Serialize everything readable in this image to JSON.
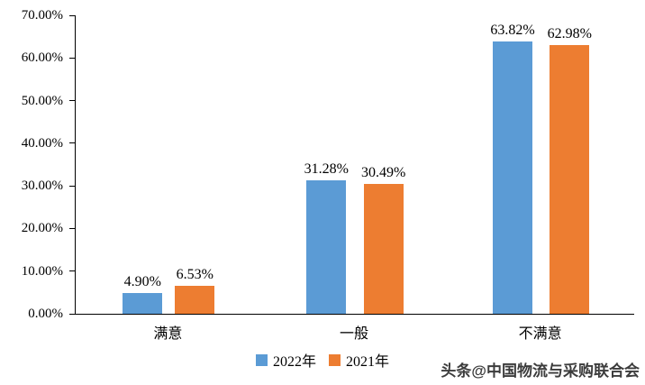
{
  "chart_data": {
    "type": "bar",
    "title": "",
    "categories": [
      "满意",
      "一般",
      "不满意"
    ],
    "series": [
      {
        "name": "2022年",
        "color": "#5B9BD5",
        "values": [
          4.9,
          31.28,
          63.82
        ]
      },
      {
        "name": "2021年",
        "color": "#ED7D31",
        "values": [
          6.53,
          30.49,
          62.98
        ]
      }
    ],
    "value_labels": [
      [
        "4.90%",
        "6.53%"
      ],
      [
        "31.28%",
        "30.49%"
      ],
      [
        "63.82%",
        "62.98%"
      ]
    ],
    "xlabel": "",
    "ylabel": "",
    "ylim": [
      0,
      70
    ],
    "y_ticks": [
      "0.00%",
      "10.00%",
      "20.00%",
      "30.00%",
      "40.00%",
      "50.00%",
      "60.00%",
      "70.00%"
    ],
    "grid": false,
    "legend_position": "bottom"
  },
  "watermark": "头条@中国物流与采购联合会"
}
